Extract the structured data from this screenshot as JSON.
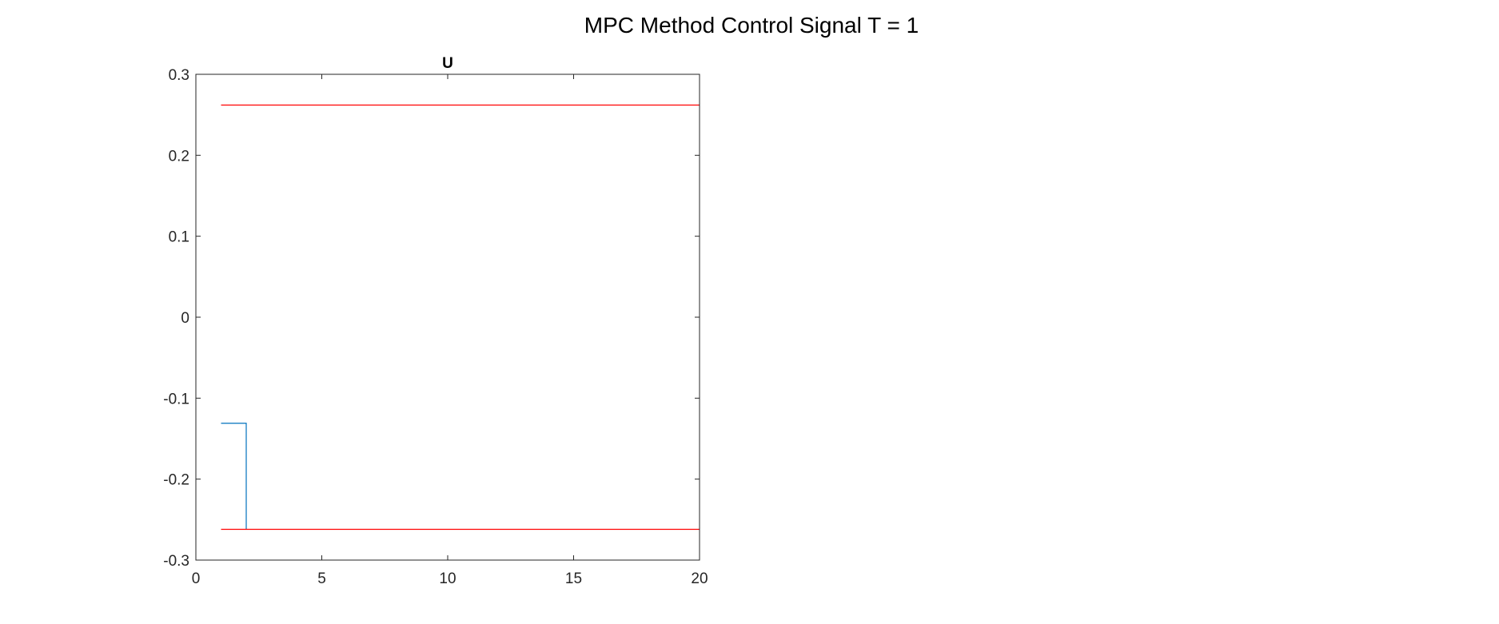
{
  "figure": {
    "suptitle": "MPC Method Control Signal T = 1"
  },
  "chart_data": {
    "type": "line",
    "title": "U",
    "xlabel": "",
    "ylabel": "",
    "xlim": [
      0,
      20
    ],
    "ylim": [
      -0.3,
      0.3
    ],
    "xticks": [
      0,
      5,
      10,
      15,
      20
    ],
    "yticks": [
      0.3,
      0.2,
      0.1,
      0,
      -0.1,
      -0.2,
      -0.3
    ],
    "xtick_labels": [
      "0",
      "5",
      "10",
      "15",
      "20"
    ],
    "ytick_labels": [
      "0.3",
      "0.2",
      "0.1",
      "0",
      "-0.1",
      "-0.2",
      "-0.3"
    ],
    "grid": false,
    "box": true,
    "series": [
      {
        "color": "#0072BD",
        "style": "stairs",
        "points": [
          [
            1,
            -0.131
          ],
          [
            2,
            -0.131
          ],
          [
            2,
            -0.262
          ]
        ]
      },
      {
        "color": "#FF0000",
        "style": "line",
        "points": [
          [
            1,
            0.262
          ],
          [
            20,
            0.262
          ]
        ]
      },
      {
        "color": "#FF0000",
        "style": "line",
        "points": [
          [
            1,
            -0.262
          ],
          [
            20,
            -0.262
          ]
        ]
      }
    ]
  }
}
